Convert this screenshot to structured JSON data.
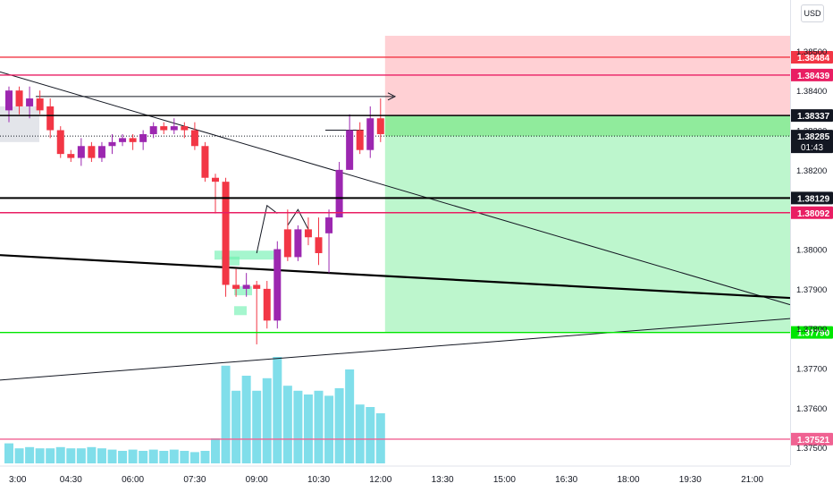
{
  "currency_label": "USD",
  "chart_data": {
    "type": "candlestick",
    "symbol_currency": "USD",
    "ylim": [
      1.37478,
      1.38538
    ],
    "price_ticks": [
      "1.38500",
      "1.38400",
      "1.38300",
      "1.38200",
      "1.38000",
      "1.37900",
      "1.37800",
      "1.37700",
      "1.37600",
      "1.37500"
    ],
    "time_ticks": [
      {
        "label": "3:00",
        "i": 0
      },
      {
        "label": "04:30",
        "i": 6
      },
      {
        "label": "06:00",
        "i": 12
      },
      {
        "label": "07:30",
        "i": 18
      },
      {
        "label": "09:00",
        "i": 24
      },
      {
        "label": "10:30",
        "i": 30
      },
      {
        "label": "12:00",
        "i": 36
      },
      {
        "label": "13:30",
        "i": 42
      },
      {
        "label": "15:00",
        "i": 48
      },
      {
        "label": "16:30",
        "i": 54
      },
      {
        "label": "18:00",
        "i": 60
      },
      {
        "label": "19:30",
        "i": 66
      },
      {
        "label": "21:00",
        "i": 72
      }
    ],
    "candles": [
      {
        "o": 1.3835,
        "h": 1.3841,
        "l": 1.3832,
        "c": 1.384
      },
      {
        "o": 1.384,
        "h": 1.3841,
        "l": 1.3834,
        "c": 1.3836
      },
      {
        "o": 1.3836,
        "h": 1.3841,
        "l": 1.3833,
        "c": 1.3838
      },
      {
        "o": 1.3838,
        "h": 1.384,
        "l": 1.3834,
        "c": 1.3835
      },
      {
        "o": 1.3836,
        "h": 1.3838,
        "l": 1.3828,
        "c": 1.383
      },
      {
        "o": 1.383,
        "h": 1.3831,
        "l": 1.3823,
        "c": 1.3824
      },
      {
        "o": 1.3824,
        "h": 1.3825,
        "l": 1.3822,
        "c": 1.3823
      },
      {
        "o": 1.3823,
        "h": 1.3828,
        "l": 1.3821,
        "c": 1.3826
      },
      {
        "o": 1.3826,
        "h": 1.3827,
        "l": 1.3822,
        "c": 1.3823
      },
      {
        "o": 1.3823,
        "h": 1.3827,
        "l": 1.3822,
        "c": 1.3826
      },
      {
        "o": 1.3826,
        "h": 1.3829,
        "l": 1.3824,
        "c": 1.3827
      },
      {
        "o": 1.3827,
        "h": 1.3829,
        "l": 1.3826,
        "c": 1.3828
      },
      {
        "o": 1.3828,
        "h": 1.3829,
        "l": 1.3825,
        "c": 1.3827
      },
      {
        "o": 1.3827,
        "h": 1.383,
        "l": 1.3825,
        "c": 1.3829
      },
      {
        "o": 1.3829,
        "h": 1.3832,
        "l": 1.3828,
        "c": 1.3831
      },
      {
        "o": 1.3831,
        "h": 1.3832,
        "l": 1.3829,
        "c": 1.383
      },
      {
        "o": 1.383,
        "h": 1.3833,
        "l": 1.3829,
        "c": 1.3831
      },
      {
        "o": 1.3831,
        "h": 1.3832,
        "l": 1.3828,
        "c": 1.383
      },
      {
        "o": 1.383,
        "h": 1.3832,
        "l": 1.3825,
        "c": 1.3826
      },
      {
        "o": 1.3826,
        "h": 1.3827,
        "l": 1.3817,
        "c": 1.3818
      },
      {
        "o": 1.3818,
        "h": 1.3819,
        "l": 1.3809,
        "c": 1.3817
      },
      {
        "o": 1.3817,
        "h": 1.3818,
        "l": 1.3788,
        "c": 1.3791
      },
      {
        "o": 1.3791,
        "h": 1.3795,
        "l": 1.3788,
        "c": 1.379
      },
      {
        "o": 1.379,
        "h": 1.3794,
        "l": 1.3788,
        "c": 1.3791
      },
      {
        "o": 1.3791,
        "h": 1.3792,
        "l": 1.3776,
        "c": 1.379
      },
      {
        "o": 1.379,
        "h": 1.3792,
        "l": 1.378,
        "c": 1.3782
      },
      {
        "o": 1.3782,
        "h": 1.3802,
        "l": 1.378,
        "c": 1.38
      },
      {
        "o": 1.3805,
        "h": 1.381,
        "l": 1.3797,
        "c": 1.3798
      },
      {
        "o": 1.3798,
        "h": 1.3806,
        "l": 1.3797,
        "c": 1.3805
      },
      {
        "o": 1.3805,
        "h": 1.3808,
        "l": 1.3801,
        "c": 1.3803
      },
      {
        "o": 1.3803,
        "h": 1.3808,
        "l": 1.3796,
        "c": 1.3799
      },
      {
        "o": 1.3804,
        "h": 1.381,
        "l": 1.3794,
        "c": 1.3808
      },
      {
        "o": 1.3808,
        "h": 1.3822,
        "l": 1.3808,
        "c": 1.382
      },
      {
        "o": 1.382,
        "h": 1.3834,
        "l": 1.382,
        "c": 1.383
      },
      {
        "o": 1.383,
        "h": 1.3832,
        "l": 1.3824,
        "c": 1.3825
      },
      {
        "o": 1.3825,
        "h": 1.3836,
        "l": 1.3823,
        "c": 1.3833
      },
      {
        "o": 1.3833,
        "h": 1.3838,
        "l": 1.3827,
        "c": 1.3829
      }
    ],
    "volume": [
      0.16,
      0.12,
      0.13,
      0.12,
      0.12,
      0.13,
      0.12,
      0.12,
      0.13,
      0.12,
      0.11,
      0.1,
      0.11,
      0.1,
      0.11,
      0.1,
      0.11,
      0.1,
      0.09,
      0.1,
      0.2,
      0.78,
      0.58,
      0.7,
      0.58,
      0.68,
      0.85,
      0.62,
      0.58,
      0.55,
      0.58,
      0.54,
      0.6,
      0.75,
      0.47,
      0.45,
      0.4
    ],
    "horizontal_levels": [
      {
        "price": 1.38484,
        "label": "1.38484",
        "color": "#f23645",
        "badge": "#f23645"
      },
      {
        "price": 1.38439,
        "label": "1.38439",
        "color": "#e91e63",
        "badge": "#e91e63"
      },
      {
        "price": 1.38337,
        "label": "1.38337",
        "color": "#000000",
        "badge": "#131722"
      },
      {
        "price": 1.38285,
        "label": "1.38285",
        "color": "#131722",
        "badge": "#131722",
        "countdown": "01:43"
      },
      {
        "price": 1.38129,
        "label": "1.38129",
        "color": "#000000",
        "badge": "#131722"
      },
      {
        "price": 1.38092,
        "label": "1.38092",
        "color": "#e91e63",
        "badge": "#e91e63"
      },
      {
        "price": 1.3779,
        "label": "1.37790",
        "color": "#00e600",
        "badge": "#00e600"
      },
      {
        "price": 1.37521,
        "label": "1.37521",
        "color": "#f06292",
        "badge": "#f06292"
      }
    ],
    "colors": {
      "up": "#9c27b0",
      "down": "#f23645",
      "volume": "#80deea",
      "stop_zone": "#ffcdd2",
      "target_zone": "#b9f6ca",
      "grid": "#f0f3fa"
    }
  }
}
